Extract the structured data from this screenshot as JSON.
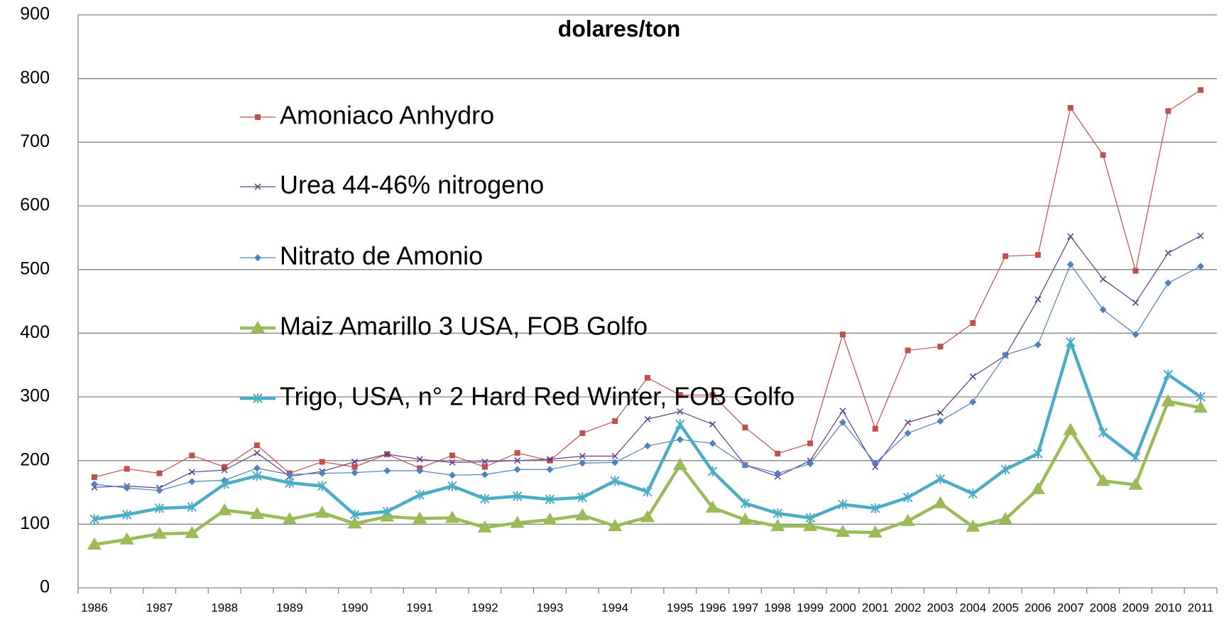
{
  "chart_data": {
    "type": "line",
    "title": "dolares/ton",
    "categories": [
      "1986",
      null,
      "1987",
      null,
      "1988",
      null,
      "1989",
      null,
      "1990",
      null,
      "1991",
      null,
      "1992",
      null,
      "1993",
      null,
      "1994",
      null,
      "1995",
      "1996",
      "1997",
      "1998",
      "1999",
      "2000",
      "2001",
      "2002",
      "2003",
      "2004",
      "2005",
      "2006",
      "2007",
      "2008",
      "2009",
      "2010",
      "2011"
    ],
    "series": [
      {
        "name": "Amoniaco Anhydro",
        "color": "#c0504d",
        "marker": "square",
        "width": 1.2,
        "values": [
          174,
          187,
          180,
          208,
          190,
          224,
          180,
          198,
          190,
          210,
          188,
          208,
          190,
          212,
          200,
          243,
          262,
          330,
          303,
          303,
          252,
          211,
          227,
          398,
          250,
          373,
          379,
          416,
          521,
          523,
          754,
          680,
          498,
          749,
          782
        ]
      },
      {
        "name": "Urea 44-46% nitrogeno",
        "color": "#5f3c8a",
        "marker": "x",
        "width": 1.2,
        "values": [
          158,
          160,
          157,
          182,
          185,
          212,
          175,
          183,
          198,
          210,
          202,
          197,
          198,
          200,
          202,
          207,
          207,
          265,
          277,
          257,
          193,
          175,
          200,
          278,
          190,
          260,
          275,
          332,
          365,
          453,
          552,
          485,
          448,
          526,
          553
        ]
      },
      {
        "name": "Nitrato de Amonio",
        "color": "#4f81bd",
        "marker": "diamond",
        "width": 1.2,
        "values": [
          163,
          157,
          153,
          167,
          169,
          188,
          178,
          180,
          181,
          184,
          184,
          177,
          178,
          186,
          186,
          196,
          197,
          223,
          233,
          227,
          193,
          180,
          195,
          260,
          196,
          243,
          262,
          292,
          366,
          382,
          508,
          437,
          398,
          479,
          505
        ]
      },
      {
        "name": "Maiz Amarillo 3 USA, FOB Golfo",
        "color": "#9bbb59",
        "marker": "triangle",
        "width": 4.5,
        "values": [
          68,
          76,
          85,
          86,
          122,
          116,
          108,
          118,
          101,
          112,
          109,
          110,
          95,
          102,
          107,
          114,
          97,
          111,
          193,
          126,
          107,
          97,
          97,
          88,
          87,
          105,
          133,
          96,
          108,
          155,
          248,
          168,
          162,
          293,
          283
        ]
      },
      {
        "name": "Trigo, USA, n° 2 Hard Red Winter, FOB Golfo",
        "color": "#4bacc6",
        "marker": "star",
        "width": 4.5,
        "values": [
          108,
          115,
          125,
          127,
          163,
          176,
          165,
          160,
          115,
          120,
          146,
          160,
          140,
          144,
          139,
          142,
          168,
          151,
          257,
          183,
          133,
          117,
          110,
          131,
          125,
          142,
          171,
          148,
          186,
          211,
          386,
          244,
          205,
          335,
          300
        ]
      }
    ],
    "ylim": [
      0,
      900
    ],
    "yticks": [
      0,
      100,
      200,
      300,
      400,
      500,
      600,
      700,
      800,
      900
    ],
    "grid": true
  }
}
